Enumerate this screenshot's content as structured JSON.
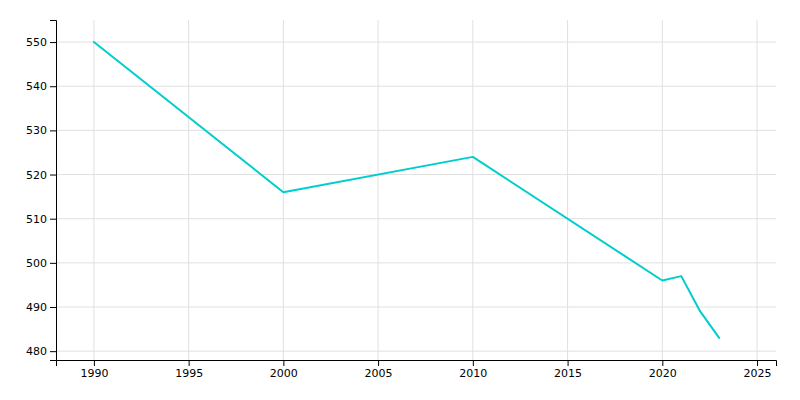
{
  "chart_data": {
    "type": "line",
    "x": [
      1990,
      2000,
      2010,
      2020,
      2021,
      2022,
      2023
    ],
    "values": [
      550,
      516,
      524,
      496,
      497,
      489,
      483
    ],
    "color": "#00CDCD",
    "xlim": [
      1988,
      2026
    ],
    "ylim": [
      478,
      555
    ],
    "xticks": [
      1990,
      1995,
      2000,
      2005,
      2010,
      2015,
      2020,
      2025
    ],
    "yticks": [
      480,
      490,
      500,
      510,
      520,
      530,
      540,
      550
    ],
    "grid": true
  }
}
